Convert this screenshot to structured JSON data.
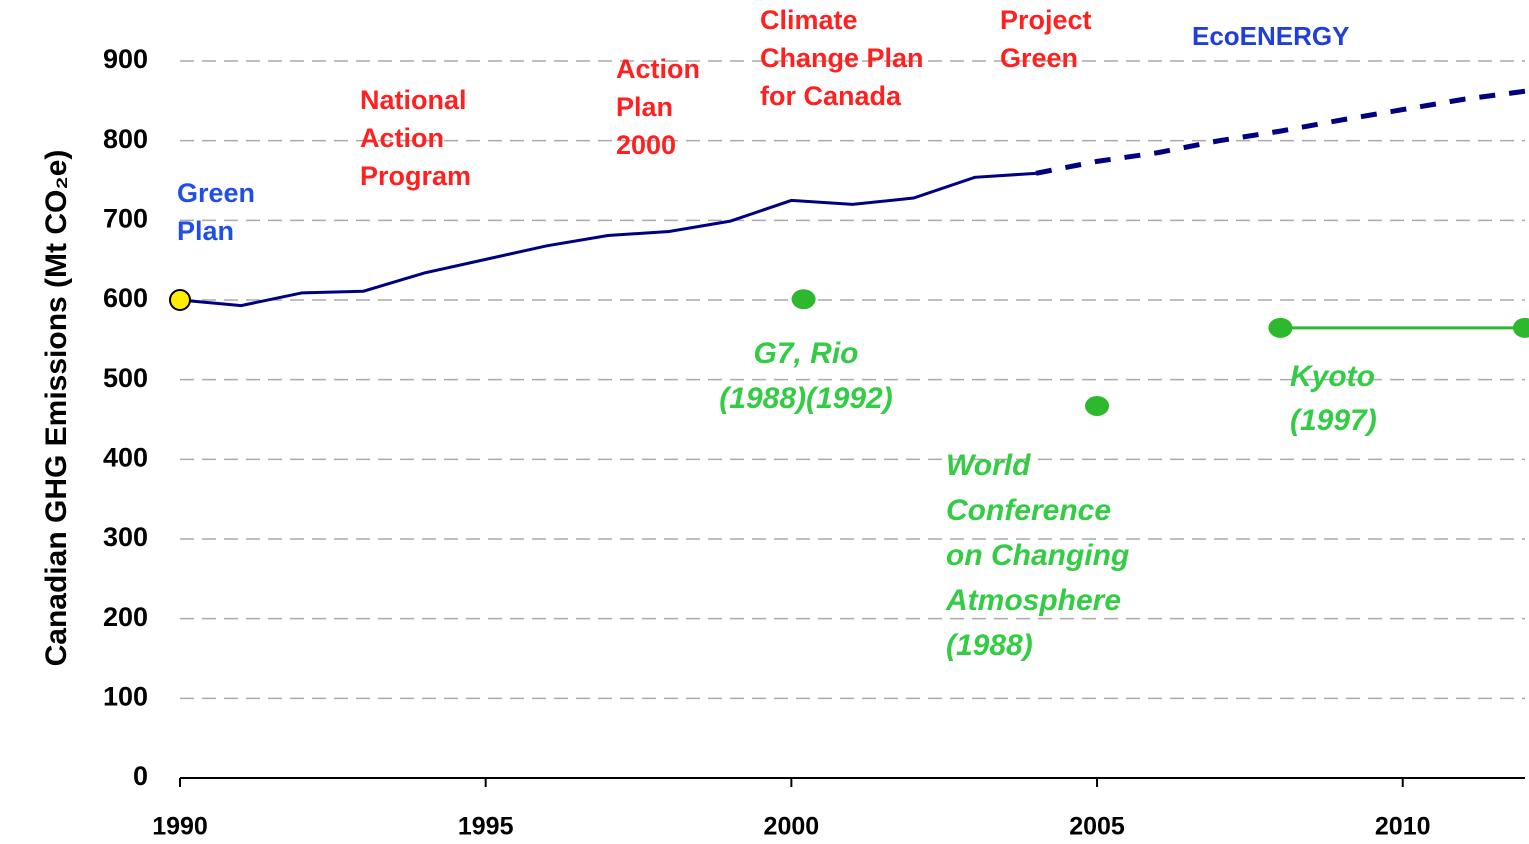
{
  "chart_data": {
    "type": "line",
    "ylabel": "Canadian GHG Emissions (Mt CO₂e)",
    "xlim": [
      1990,
      2012
    ],
    "xticks": [
      1990,
      1995,
      2000,
      2005,
      2010
    ],
    "ylim": [
      0,
      900
    ],
    "yticks": [
      0,
      100,
      200,
      300,
      400,
      500,
      600,
      700,
      800,
      900
    ],
    "grid": true,
    "series": [
      {
        "style": "solid",
        "color": "#000080",
        "x": [
          1990,
          1991,
          1992,
          1993,
          1994,
          1995,
          1996,
          1997,
          1998,
          1999,
          2000,
          2001,
          2002,
          2003,
          2004
        ],
        "values": [
          600,
          593,
          609,
          611,
          634,
          651,
          668,
          681,
          686,
          699,
          725,
          720,
          728,
          754,
          759
        ]
      },
      {
        "style": "dashed",
        "color": "#000080",
        "x": [
          2004,
          2005,
          2006,
          2007,
          2008,
          2009,
          2010,
          2011,
          2012
        ],
        "values": [
          759,
          774,
          785,
          800,
          812,
          826,
          839,
          852,
          862
        ]
      },
      {
        "style": "points",
        "color": "#2db82d",
        "x": [
          2000.2,
          2005
        ],
        "values": [
          601,
          467
        ]
      },
      {
        "style": "line-markers",
        "color": "#2db82d",
        "x": [
          2008,
          2012
        ],
        "values": [
          565,
          565
        ]
      },
      {
        "style": "points",
        "color": "#ffee00",
        "x": [
          1990
        ],
        "values": [
          600
        ]
      }
    ],
    "annotations": [
      {
        "lines": [
          "Green",
          "Plan"
        ],
        "color": "#1f4fe8"
      },
      {
        "lines": [
          "National",
          "Action",
          "Program"
        ],
        "color": "#ff2020"
      },
      {
        "lines": [
          "Action",
          "Plan",
          "2000"
        ],
        "color": "#ff2020"
      },
      {
        "lines": [
          "Climate",
          "Change Plan",
          "for Canada"
        ],
        "color": "#ff2020"
      },
      {
        "lines": [
          "Project",
          "Green"
        ],
        "color": "#ff2020"
      },
      {
        "lines": [
          "EcoENERGY"
        ],
        "color": "#1f3fd8"
      },
      {
        "lines": [
          "G7, Rio",
          "(1988)(1992)"
        ],
        "color": "#33cc44",
        "italic": true
      },
      {
        "lines": [
          "World",
          "Conference",
          "on Changing",
          "Atmosphere",
          "(1988)"
        ],
        "color": "#33cc44",
        "italic": true
      },
      {
        "lines": [
          "Kyoto",
          "(1997)"
        ],
        "color": "#33cc44",
        "italic": true
      }
    ]
  }
}
